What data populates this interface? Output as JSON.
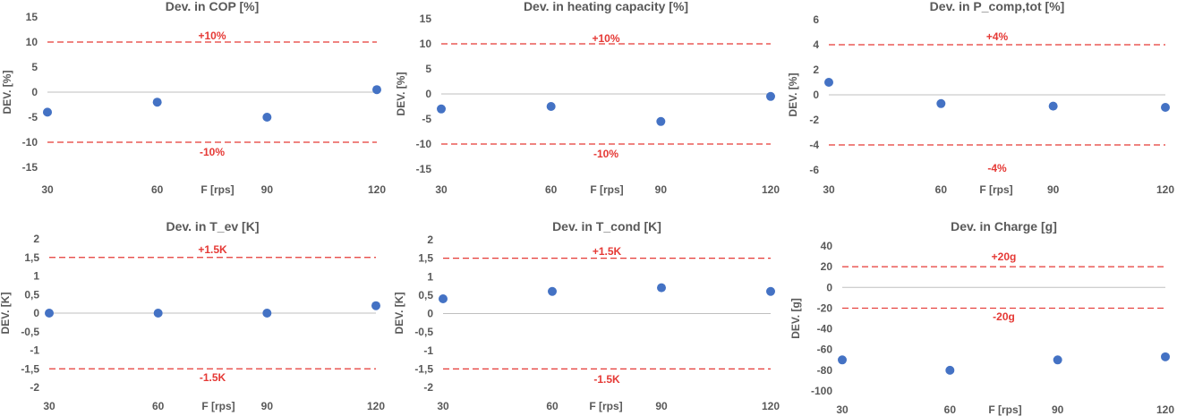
{
  "chart_data": [
    {
      "type": "scatter",
      "title": "Dev. in COP [%]",
      "xlabel": "F [rps]",
      "ylabel": "DEV. [%]",
      "x": [
        30,
        60,
        90,
        120
      ],
      "y": [
        -4,
        -2,
        -5,
        0.5
      ],
      "xlim": [
        30,
        120
      ],
      "ylim": [
        -15,
        15
      ],
      "yticks": [
        "-15",
        "-10",
        "-5",
        "0",
        "5",
        "10",
        "15"
      ],
      "reference_lines": [
        {
          "value": 10,
          "label": "+10%"
        },
        {
          "value": -10,
          "label": "-10%"
        }
      ],
      "marker_color": "#4472c4",
      "reference_color": "#e53935",
      "grid": false
    },
    {
      "type": "scatter",
      "title": "Dev. in heating capacity [%]",
      "xlabel": "F [rps]",
      "ylabel": "DEV. [%]",
      "x": [
        30,
        60,
        90,
        120
      ],
      "y": [
        -3,
        -2.5,
        -5.5,
        -0.5
      ],
      "xlim": [
        30,
        120
      ],
      "ylim": [
        -15,
        15
      ],
      "yticks": [
        "-15",
        "-10",
        "-5",
        "0",
        "5",
        "10",
        "15"
      ],
      "reference_lines": [
        {
          "value": 10,
          "label": "+10%"
        },
        {
          "value": -10,
          "label": "-10%"
        }
      ],
      "marker_color": "#4472c4",
      "reference_color": "#e53935",
      "grid": false
    },
    {
      "type": "scatter",
      "title": "Dev. in P_comp,tot [%]",
      "xlabel": "F [rps]",
      "ylabel": "DEV. [%]",
      "x": [
        30,
        60,
        90,
        120
      ],
      "y": [
        1,
        -0.7,
        -0.9,
        -1
      ],
      "xlim": [
        30,
        120
      ],
      "ylim": [
        -6,
        6
      ],
      "yticks": [
        "-6",
        "-4",
        "-2",
        "0",
        "2",
        "4",
        "6"
      ],
      "reference_lines": [
        {
          "value": 4,
          "label": "+4%"
        },
        {
          "value": -4,
          "label": "-4%"
        }
      ],
      "marker_color": "#4472c4",
      "reference_color": "#e53935",
      "grid": false
    },
    {
      "type": "scatter",
      "title": "Dev. in T_ev [K]",
      "xlabel": "F [rps]",
      "ylabel": "DEV. [K]",
      "x": [
        30,
        60,
        90,
        120
      ],
      "y": [
        0,
        0,
        0,
        0.2
      ],
      "xlim": [
        30,
        120
      ],
      "ylim": [
        -2,
        2
      ],
      "yticks": [
        "-2",
        "-1,5",
        "-1",
        "-0,5",
        "0",
        "0,5",
        "1",
        "1,5",
        "2"
      ],
      "reference_lines": [
        {
          "value": 1.5,
          "label": "+1.5K"
        },
        {
          "value": -1.5,
          "label": "-1.5K"
        }
      ],
      "marker_color": "#4472c4",
      "reference_color": "#e53935",
      "grid": false
    },
    {
      "type": "scatter",
      "title": "Dev. in T_cond [K]",
      "xlabel": "F [rps]",
      "ylabel": "DEV. [K]",
      "x": [
        30,
        60,
        90,
        120
      ],
      "y": [
        0.4,
        0.6,
        0.7,
        0.6
      ],
      "xlim": [
        30,
        120
      ],
      "ylim": [
        -2,
        2
      ],
      "yticks": [
        "-2",
        "-1,5",
        "-1",
        "-0,5",
        "0",
        "0,5",
        "1",
        "1,5",
        "2"
      ],
      "reference_lines": [
        {
          "value": 1.5,
          "label": "+1.5K"
        },
        {
          "value": -1.5,
          "label": "-1.5K"
        }
      ],
      "marker_color": "#4472c4",
      "reference_color": "#e53935",
      "grid": false
    },
    {
      "type": "scatter",
      "title": "Dev. in Charge [g]",
      "xlabel": "F [rps]",
      "ylabel": "DEV. [g]",
      "x": [
        30,
        60,
        90,
        120
      ],
      "y": [
        -70,
        -80,
        -70,
        -67
      ],
      "xlim": [
        30,
        120
      ],
      "ylim": [
        -100,
        40
      ],
      "yticks": [
        "-100",
        "-80",
        "-60",
        "-40",
        "-20",
        "0",
        "20",
        "40"
      ],
      "reference_lines": [
        {
          "value": 20,
          "label": "+20g"
        },
        {
          "value": -20,
          "label": "-20g"
        }
      ],
      "marker_color": "#4472c4",
      "reference_color": "#e53935",
      "grid": false
    }
  ]
}
